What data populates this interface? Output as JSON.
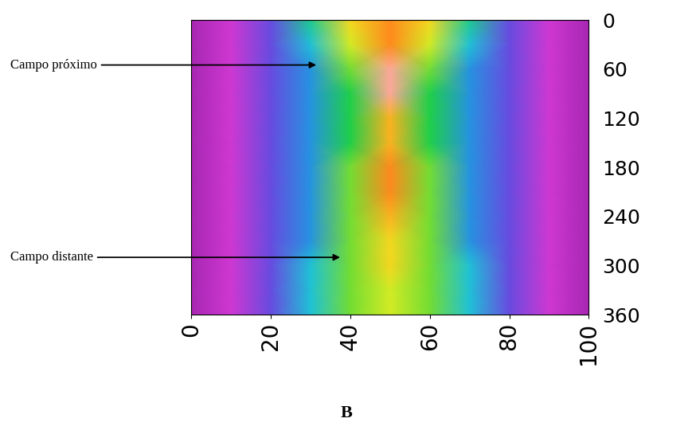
{
  "chart_data": {
    "type": "heatmap",
    "x": [
      0,
      10,
      20,
      30,
      40,
      50,
      60,
      70,
      80,
      90,
      100
    ],
    "y": [
      0,
      30,
      60,
      90,
      120,
      150,
      180,
      210,
      240,
      270,
      300,
      330,
      360
    ],
    "cells": [
      [
        1.5,
        2.0,
        3.0,
        5.0,
        7.0,
        8.0,
        7.0,
        5.0,
        3.0,
        2.0,
        1.5
      ],
      [
        1.5,
        2.0,
        3.0,
        4.5,
        6.5,
        8.0,
        6.5,
        4.5,
        3.0,
        2.0,
        1.5
      ],
      [
        1.5,
        2.0,
        3.0,
        4.0,
        6.0,
        9.5,
        6.0,
        4.0,
        3.0,
        2.0,
        1.5
      ],
      [
        1.5,
        2.0,
        3.0,
        4.0,
        5.5,
        9.5,
        5.5,
        4.0,
        3.0,
        2.0,
        1.5
      ],
      [
        1.5,
        2.0,
        3.0,
        4.0,
        5.5,
        7.5,
        5.5,
        4.0,
        3.0,
        2.0,
        1.5
      ],
      [
        1.5,
        2.0,
        3.0,
        4.0,
        5.5,
        7.5,
        5.5,
        4.0,
        3.0,
        2.0,
        1.5
      ],
      [
        1.5,
        2.0,
        3.0,
        4.0,
        6.0,
        8.0,
        6.0,
        4.0,
        3.0,
        2.0,
        1.5
      ],
      [
        1.5,
        2.0,
        3.0,
        4.0,
        6.0,
        8.0,
        6.0,
        4.0,
        3.0,
        2.0,
        1.5
      ],
      [
        1.5,
        2.0,
        3.0,
        4.0,
        6.0,
        7.5,
        6.0,
        4.0,
        3.0,
        2.0,
        1.5
      ],
      [
        1.5,
        2.0,
        3.0,
        4.0,
        6.0,
        7.0,
        6.0,
        4.0,
        3.0,
        2.0,
        1.5
      ],
      [
        1.5,
        2.0,
        3.0,
        4.5,
        6.0,
        7.0,
        6.0,
        4.5,
        3.0,
        2.0,
        1.5
      ],
      [
        1.5,
        2.0,
        3.0,
        4.5,
        6.0,
        6.5,
        6.0,
        4.5,
        3.0,
        2.0,
        1.5
      ],
      [
        1.5,
        2.0,
        3.0,
        4.5,
        6.0,
        6.5,
        6.0,
        4.5,
        3.0,
        2.0,
        1.5
      ]
    ],
    "color_range": [
      0,
      10
    ],
    "xlim": [
      0,
      100
    ],
    "xticks": [
      0,
      20,
      40,
      60,
      80,
      100
    ],
    "ylim": [
      360,
      0
    ],
    "yticks": [
      0,
      60,
      120,
      180,
      240,
      300,
      360
    ],
    "annotations": [
      {
        "text": "Campo próximo",
        "x": 32,
        "y": 55
      },
      {
        "text": "Campo distante",
        "x": 38,
        "y": 290
      }
    ],
    "caption": "B"
  }
}
